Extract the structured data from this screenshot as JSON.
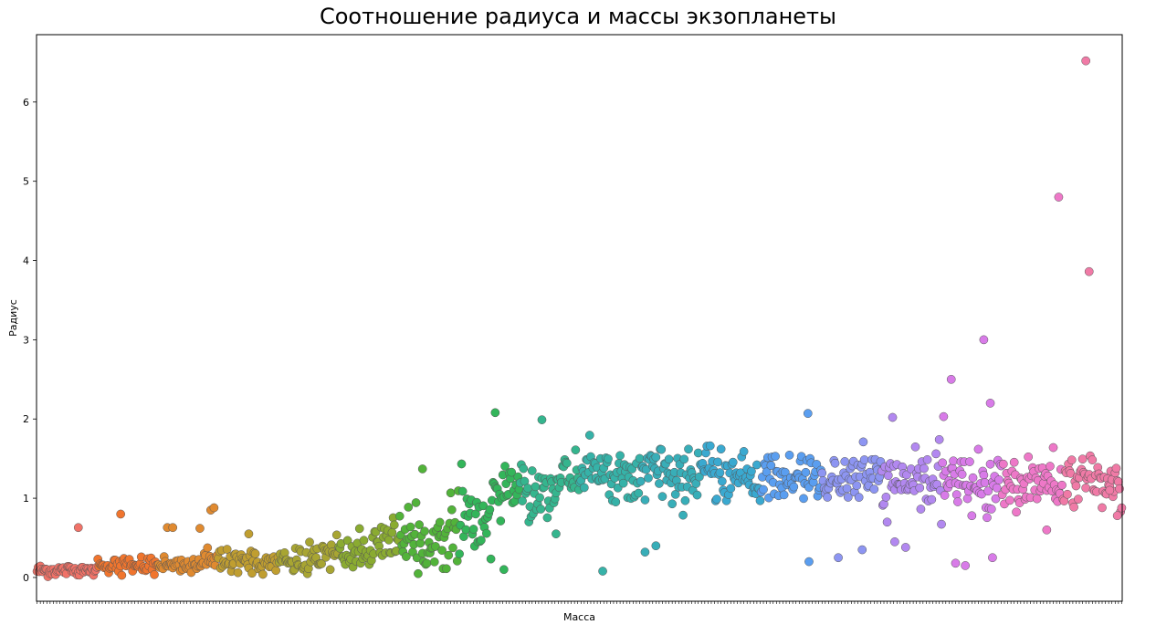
{
  "chart_data": {
    "type": "scatter",
    "title": "Соотношение радиуса и массы экзопланеты",
    "xlabel": "Масса",
    "ylabel": "Радиус",
    "ylim": [
      -0.3,
      6.85
    ],
    "yticks": [
      0,
      1,
      2,
      3,
      4,
      5,
      6
    ],
    "x_is_categorical": true,
    "n_categories": 1000,
    "x_tick_labels_visible": false,
    "color_map": "husl-rainbow",
    "palette": [
      "#f07268",
      "#f0752e",
      "#e08a30",
      "#c09e30",
      "#a8a532",
      "#8aab31",
      "#52b33a",
      "#33b55a",
      "#35b58e",
      "#36b2a8",
      "#38aeb8",
      "#3aa9d0",
      "#5a9ef0",
      "#8d95f2",
      "#b288f0",
      "#d87be8",
      "#ee78c8",
      "#f07aa6"
    ],
    "segments": [
      {
        "x_range": [
          0,
          55
        ],
        "y_center": 0.09,
        "spread": 0.07
      },
      {
        "x_range": [
          55,
          150
        ],
        "y_center": 0.16,
        "spread": 0.1
      },
      {
        "x_range": [
          150,
          250
        ],
        "y_center": 0.2,
        "spread": 0.12
      },
      {
        "x_range": [
          250,
          310
        ],
        "y_center": 0.3,
        "spread": 0.2
      },
      {
        "x_range": [
          310,
          380
        ],
        "y_center": 0.45,
        "spread": 0.3
      },
      {
        "x_range": [
          380,
          420
        ],
        "y_center": 0.7,
        "spread": 0.35
      },
      {
        "x_range": [
          420,
          480
        ],
        "y_center": 1.1,
        "spread": 0.3
      },
      {
        "x_range": [
          480,
          620
        ],
        "y_center": 1.3,
        "spread": 0.28
      },
      {
        "x_range": [
          620,
          780
        ],
        "y_center": 1.25,
        "spread": 0.28
      },
      {
        "x_range": [
          780,
          1000
        ],
        "y_center": 1.2,
        "spread": 0.32
      }
    ],
    "outliers": [
      {
        "x": 38,
        "y": 0.63
      },
      {
        "x": 77,
        "y": 0.8
      },
      {
        "x": 120,
        "y": 0.63
      },
      {
        "x": 125,
        "y": 0.63
      },
      {
        "x": 150,
        "y": 0.62
      },
      {
        "x": 160,
        "y": 0.85
      },
      {
        "x": 163,
        "y": 0.88
      },
      {
        "x": 195,
        "y": 0.55
      },
      {
        "x": 355,
        "y": 1.37
      },
      {
        "x": 422,
        "y": 2.08
      },
      {
        "x": 430,
        "y": 0.1
      },
      {
        "x": 465,
        "y": 1.99
      },
      {
        "x": 478,
        "y": 0.55
      },
      {
        "x": 521,
        "y": 0.08
      },
      {
        "x": 560,
        "y": 0.32
      },
      {
        "x": 570,
        "y": 0.4
      },
      {
        "x": 710,
        "y": 2.07
      },
      {
        "x": 711,
        "y": 0.2
      },
      {
        "x": 738,
        "y": 0.25
      },
      {
        "x": 788,
        "y": 2.02
      },
      {
        "x": 790,
        "y": 0.45
      },
      {
        "x": 835,
        "y": 2.03
      },
      {
        "x": 842,
        "y": 2.5
      },
      {
        "x": 846,
        "y": 0.18
      },
      {
        "x": 872,
        "y": 3.0
      },
      {
        "x": 878,
        "y": 2.2
      },
      {
        "x": 941,
        "y": 4.8
      },
      {
        "x": 966,
        "y": 6.52
      },
      {
        "x": 969,
        "y": 3.86
      },
      {
        "x": 988,
        "y": 1.1
      },
      {
        "x": 995,
        "y": 0.78
      },
      {
        "x": 855,
        "y": 0.15
      },
      {
        "x": 880,
        "y": 0.25
      },
      {
        "x": 930,
        "y": 0.6
      },
      {
        "x": 760,
        "y": 0.35
      },
      {
        "x": 800,
        "y": 0.38
      }
    ]
  }
}
